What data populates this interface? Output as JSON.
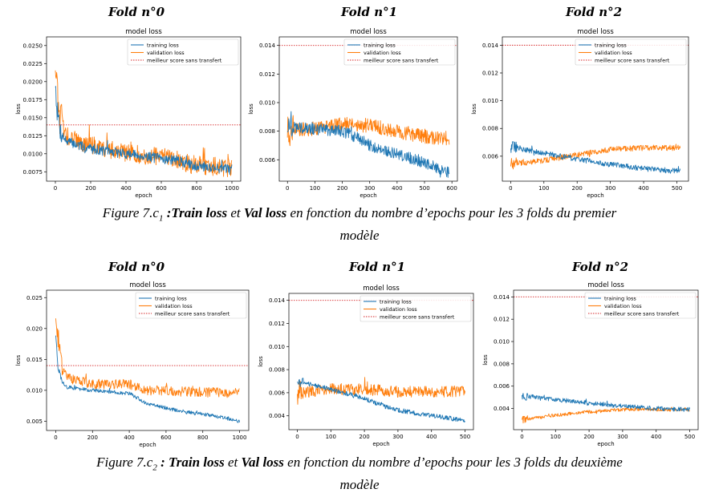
{
  "colors": {
    "train": "#1f77b4",
    "val": "#ff7f0e",
    "ref": "#d62728"
  },
  "captions": [
    {
      "prefix": "Figure 7.c",
      "subscript": "1",
      "colon": " :",
      "train": "Train loss",
      "et": " et ",
      "val": "Val loss",
      "rest": " en fonction du nombre d’epochs pour les 3 folds du premier",
      "line2": "modèle"
    },
    {
      "prefix": "Figure 7.c",
      "subscript": "2",
      "colon": " : ",
      "train": "Train loss",
      "et": " et ",
      "val": "Val loss",
      "rest": " en fonction du nombre d’epochs pour les 3 folds du deuxième",
      "line2": "modèle"
    }
  ],
  "chart_data": [
    {
      "type": "line",
      "fold_title": "Fold n°0",
      "title": "model loss",
      "xlabel": "epoch",
      "ylabel": "loss",
      "xlim": [
        -50,
        1050
      ],
      "ylim": [
        0.0062,
        0.0262
      ],
      "xticks": [
        0,
        200,
        400,
        600,
        800,
        1000
      ],
      "yticks": [
        0.0075,
        0.01,
        0.0125,
        0.015,
        0.0175,
        0.02,
        0.0225,
        0.025
      ],
      "ytick_labels": [
        "0.0075",
        "0.0100",
        "0.0125",
        "0.0150",
        "0.0175",
        "0.0200",
        "0.0225",
        "0.0250"
      ],
      "reference_line": 0.014,
      "epochs": 1000,
      "legend": "top-right",
      "series": [
        {
          "name": "training loss",
          "shape": [
            [
              0,
              0.02
            ],
            [
              10,
              0.016
            ],
            [
              30,
              0.013
            ],
            [
              60,
              0.0118
            ],
            [
              150,
              0.011
            ],
            [
              300,
              0.0103
            ],
            [
              500,
              0.0097
            ],
            [
              700,
              0.009
            ],
            [
              750,
              0.0085
            ],
            [
              1000,
              0.0078
            ]
          ],
          "noise": 0.0007
        },
        {
          "name": "validation loss",
          "shape": [
            [
              0,
              0.023
            ],
            [
              8,
              0.02
            ],
            [
              25,
              0.015
            ],
            [
              60,
              0.0125
            ],
            [
              150,
              0.0115
            ],
            [
              300,
              0.0106
            ],
            [
              500,
              0.0098
            ],
            [
              700,
              0.0092
            ],
            [
              750,
              0.0086
            ],
            [
              1000,
              0.008
            ]
          ],
          "noise": 0.0013
        },
        {
          "name": "meilleur score sans transfert",
          "constant": 0.014
        }
      ]
    },
    {
      "type": "line",
      "fold_title": "Fold n°1",
      "title": "model loss",
      "xlabel": "epoch",
      "ylabel": "loss",
      "xlim": [
        -30,
        620
      ],
      "ylim": [
        0.0045,
        0.0146
      ],
      "xticks": [
        0,
        100,
        200,
        300,
        400,
        500,
        600
      ],
      "yticks": [
        0.006,
        0.008,
        0.01,
        0.012,
        0.014
      ],
      "ytick_labels": [
        "0.006",
        "0.008",
        "0.010",
        "0.012",
        "0.014"
      ],
      "reference_line": 0.014,
      "epochs": 590,
      "legend": "top-right",
      "series": [
        {
          "name": "training loss",
          "shape": [
            [
              0,
              0.0083
            ],
            [
              200,
              0.008
            ],
            [
              260,
              0.0075
            ],
            [
              300,
              0.007
            ],
            [
              400,
              0.0064
            ],
            [
              500,
              0.0058
            ],
            [
              590,
              0.0051
            ]
          ],
          "noise": 0.0004
        },
        {
          "name": "validation loss",
          "shape": [
            [
              0,
              0.008
            ],
            [
              100,
              0.0082
            ],
            [
              200,
              0.0085
            ],
            [
              300,
              0.0084
            ],
            [
              400,
              0.008
            ],
            [
              500,
              0.0076
            ],
            [
              590,
              0.0075
            ]
          ],
          "noise": 0.0005
        },
        {
          "name": "meilleur score sans transfert",
          "constant": 0.014
        }
      ]
    },
    {
      "type": "line",
      "fold_title": "Fold n°2",
      "title": "model loss",
      "xlabel": "epoch",
      "ylabel": "loss",
      "xlim": [
        -25,
        535
      ],
      "ylim": [
        0.0042,
        0.0146
      ],
      "xticks": [
        0,
        100,
        200,
        300,
        400,
        500
      ],
      "yticks": [
        0.006,
        0.008,
        0.01,
        0.012,
        0.014
      ],
      "ytick_labels": [
        "0.006",
        "0.008",
        "0.010",
        "0.012",
        "0.014"
      ],
      "reference_line": 0.014,
      "epochs": 510,
      "legend": "top-right",
      "series": [
        {
          "name": "training loss",
          "shape": [
            [
              0,
              0.0067
            ],
            [
              100,
              0.0062
            ],
            [
              200,
              0.0058
            ],
            [
              300,
              0.0054
            ],
            [
              400,
              0.0051
            ],
            [
              510,
              0.0049
            ]
          ],
          "noise": 0.0002
        },
        {
          "name": "validation loss",
          "shape": [
            [
              0,
              0.0054
            ],
            [
              100,
              0.0057
            ],
            [
              200,
              0.0061
            ],
            [
              300,
              0.0065
            ],
            [
              400,
              0.0066
            ],
            [
              510,
              0.0066
            ]
          ],
          "noise": 0.0002
        },
        {
          "name": "meilleur score sans transfert",
          "constant": 0.014
        }
      ]
    },
    {
      "type": "line",
      "fold_title": "Fold n°0",
      "title": "model loss",
      "xlabel": "epoch",
      "ylabel": "loss",
      "xlim": [
        -50,
        1050
      ],
      "ylim": [
        0.0035,
        0.0262
      ],
      "xticks": [
        0,
        200,
        400,
        600,
        800,
        1000
      ],
      "yticks": [
        0.005,
        0.01,
        0.015,
        0.02,
        0.025
      ],
      "ytick_labels": [
        "0.005",
        "0.010",
        "0.015",
        "0.020",
        "0.025"
      ],
      "reference_line": 0.014,
      "epochs": 1000,
      "legend": "top-right",
      "series": [
        {
          "name": "training loss",
          "shape": [
            [
              0,
              0.019
            ],
            [
              10,
              0.014
            ],
            [
              30,
              0.0115
            ],
            [
              60,
              0.0105
            ],
            [
              200,
              0.01
            ],
            [
              400,
              0.0095
            ],
            [
              500,
              0.0078
            ],
            [
              700,
              0.0065
            ],
            [
              900,
              0.0057
            ],
            [
              1000,
              0.005
            ]
          ],
          "noise": 0.0003
        },
        {
          "name": "validation loss",
          "shape": [
            [
              0,
              0.022
            ],
            [
              8,
              0.02
            ],
            [
              30,
              0.014
            ],
            [
              60,
              0.012
            ],
            [
              200,
              0.011
            ],
            [
              400,
              0.011
            ],
            [
              500,
              0.01
            ],
            [
              700,
              0.0098
            ],
            [
              1000,
              0.0095
            ]
          ],
          "noise": 0.0008
        },
        {
          "name": "meilleur score sans transfert",
          "constant": 0.014
        }
      ]
    },
    {
      "type": "line",
      "fold_title": "Fold n°1",
      "title": "model loss",
      "xlabel": "epoch",
      "ylabel": "loss",
      "xlim": [
        -25,
        525
      ],
      "ylim": [
        0.0028,
        0.0146
      ],
      "xticks": [
        0,
        100,
        200,
        300,
        400,
        500
      ],
      "yticks": [
        0.004,
        0.006,
        0.008,
        0.01,
        0.012,
        0.014
      ],
      "ytick_labels": [
        "0.004",
        "0.006",
        "0.008",
        "0.010",
        "0.012",
        "0.014"
      ],
      "reference_line": 0.014,
      "epochs": 500,
      "legend": "top-right",
      "series": [
        {
          "name": "training loss",
          "shape": [
            [
              0,
              0.007
            ],
            [
              100,
              0.0063
            ],
            [
              200,
              0.0055
            ],
            [
              260,
              0.0048
            ],
            [
              300,
              0.0045
            ],
            [
              400,
              0.004
            ],
            [
              500,
              0.0036
            ]
          ],
          "noise": 0.0002
        },
        {
          "name": "validation loss",
          "shape": [
            [
              0,
              0.006
            ],
            [
              100,
              0.0063
            ],
            [
              200,
              0.0063
            ],
            [
              300,
              0.0061
            ],
            [
              400,
              0.0061
            ],
            [
              500,
              0.0061
            ]
          ],
          "noise": 0.0005
        },
        {
          "name": "meilleur score sans transfert",
          "constant": 0.014
        }
      ]
    },
    {
      "type": "line",
      "fold_title": "Fold n°2",
      "title": "model loss",
      "xlabel": "epoch",
      "ylabel": "loss",
      "xlim": [
        -25,
        525
      ],
      "ylim": [
        0.0021,
        0.0146
      ],
      "xticks": [
        0,
        100,
        200,
        300,
        400,
        500
      ],
      "yticks": [
        0.004,
        0.006,
        0.008,
        0.01,
        0.012,
        0.014
      ],
      "ytick_labels": [
        "0.004",
        "0.006",
        "0.008",
        "0.010",
        "0.012",
        "0.014"
      ],
      "reference_line": 0.014,
      "epochs": 500,
      "legend": "top-right",
      "series": [
        {
          "name": "training loss",
          "shape": [
            [
              0,
              0.0052
            ],
            [
              100,
              0.0048
            ],
            [
              200,
              0.0045
            ],
            [
              300,
              0.0042
            ],
            [
              400,
              0.004
            ],
            [
              500,
              0.0039
            ]
          ],
          "noise": 0.0002
        },
        {
          "name": "validation loss",
          "shape": [
            [
              0,
              0.003
            ],
            [
              100,
              0.0034
            ],
            [
              200,
              0.0037
            ],
            [
              300,
              0.0039
            ],
            [
              400,
              0.0039
            ],
            [
              500,
              0.0039
            ]
          ],
          "noise": 0.00015
        },
        {
          "name": "meilleur score sans transfert",
          "constant": 0.014
        }
      ]
    }
  ]
}
